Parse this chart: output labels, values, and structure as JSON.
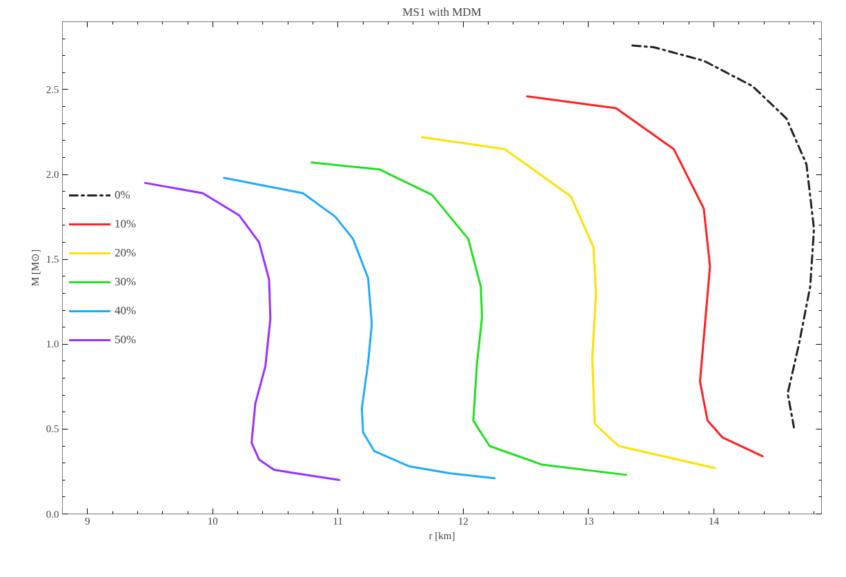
{
  "chart_data": {
    "type": "line",
    "title": "MS1 with MDM",
    "xlabel": "r [km]",
    "ylabel": "M [M⊙]",
    "xlim": [
      8.8,
      14.86
    ],
    "ylim": [
      0,
      2.9
    ],
    "xticks": [
      9,
      10,
      11,
      12,
      13,
      14
    ],
    "yticks": [
      {
        "value": 0,
        "label": "0.0"
      },
      {
        "value": 0.5,
        "label": "0.5"
      },
      {
        "value": 1,
        "label": "1.0"
      },
      {
        "value": 1.5,
        "label": "1.5"
      },
      {
        "value": 2,
        "label": "2.0"
      },
      {
        "value": 2.5,
        "label": "2.5"
      }
    ],
    "grid": false,
    "legend": "left",
    "marker": "none",
    "series": [
      {
        "name": "0%",
        "color": "#222222",
        "line_style": "dashdot",
        "x": [
          13.35,
          13.52,
          13.92,
          14.31,
          14.58,
          14.74,
          14.8,
          14.77,
          14.68,
          14.59,
          14.64
        ],
        "values": [
          2.76,
          2.75,
          2.67,
          2.52,
          2.33,
          2.06,
          1.68,
          1.34,
          1.0,
          0.71,
          0.51
        ]
      },
      {
        "name": "10%",
        "color": "#ff2020",
        "line_style": "solid",
        "x": [
          12.51,
          13.22,
          13.68,
          13.92,
          13.97,
          13.93,
          13.89,
          13.95,
          14.07,
          14.39
        ],
        "values": [
          2.46,
          2.39,
          2.15,
          1.8,
          1.46,
          1.12,
          0.78,
          0.55,
          0.45,
          0.34
        ]
      },
      {
        "name": "20%",
        "color": "#ffe000",
        "line_style": "solid",
        "x": [
          11.67,
          12.33,
          12.86,
          13.04,
          13.06,
          13.03,
          13.05,
          13.24,
          14.01
        ],
        "values": [
          2.22,
          2.15,
          1.87,
          1.57,
          1.3,
          0.92,
          0.53,
          0.4,
          0.27
        ]
      },
      {
        "name": "30%",
        "color": "#20e020",
        "line_style": "solid",
        "x": [
          10.79,
          11.33,
          11.75,
          12.04,
          12.14,
          12.15,
          12.11,
          12.08,
          12.21,
          12.63,
          13.3
        ],
        "values": [
          2.07,
          2.03,
          1.88,
          1.62,
          1.34,
          1.16,
          0.89,
          0.55,
          0.4,
          0.29,
          0.23
        ]
      },
      {
        "name": "40%",
        "color": "#20aaff",
        "line_style": "solid",
        "x": [
          10.09,
          10.72,
          10.98,
          11.12,
          11.24,
          11.27,
          11.24,
          11.19,
          11.2,
          11.29,
          11.57,
          11.89,
          12.25
        ],
        "values": [
          1.98,
          1.89,
          1.75,
          1.62,
          1.39,
          1.12,
          0.89,
          0.62,
          0.48,
          0.37,
          0.28,
          0.24,
          0.21
        ]
      },
      {
        "name": "50%",
        "color": "#9a30ff",
        "line_style": "solid",
        "x": [
          9.46,
          9.92,
          10.21,
          10.37,
          10.45,
          10.46,
          10.42,
          10.34,
          10.31,
          10.37,
          10.49,
          10.66,
          11.01
        ],
        "values": [
          1.95,
          1.89,
          1.76,
          1.6,
          1.38,
          1.15,
          0.87,
          0.65,
          0.42,
          0.32,
          0.26,
          0.24,
          0.2
        ]
      }
    ]
  }
}
